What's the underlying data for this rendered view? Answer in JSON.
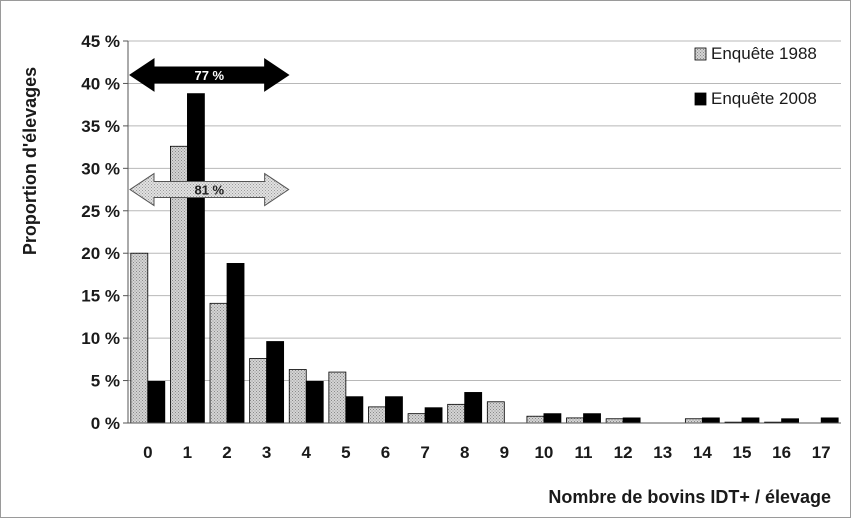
{
  "chart_data": {
    "type": "bar",
    "categories": [
      "0",
      "1",
      "2",
      "3",
      "4",
      "5",
      "6",
      "7",
      "8",
      "9",
      "10",
      "11",
      "12",
      "13",
      "14",
      "15",
      "16",
      "17"
    ],
    "series": [
      {
        "name": "Enquête 1988",
        "color": "#c8c8c8",
        "values": [
          20.0,
          32.6,
          14.1,
          7.6,
          6.3,
          6.0,
          1.9,
          1.1,
          2.2,
          2.5,
          0.8,
          0.6,
          0.5,
          0,
          0.5,
          0.1,
          0.1,
          0
        ]
      },
      {
        "name": "Enquête 2008",
        "color": "#000000",
        "values": [
          4.9,
          38.8,
          18.8,
          9.6,
          4.9,
          3.1,
          3.1,
          1.8,
          3.6,
          0,
          1.1,
          1.1,
          0.6,
          0,
          0.6,
          0.6,
          0.5,
          0.6
        ]
      }
    ],
    "xlabel": "Nombre de bovins IDT+ / élevage",
    "ylabel": "Proportion d'élevages",
    "ylim": [
      0,
      45
    ],
    "yticks": [
      0,
      5,
      10,
      15,
      20,
      25,
      30,
      35,
      40,
      45
    ],
    "ytick_labels": [
      "0 %",
      "5 %",
      "10 %",
      "15 %",
      "20 %",
      "25 %",
      "30 %",
      "35 %",
      "40 %",
      "45 %"
    ],
    "grid": true,
    "legend_position": "top-right",
    "annotations": [
      {
        "label": "77 %",
        "style": "black-arrow",
        "x_from": 0,
        "x_to": 3,
        "y": 41
      },
      {
        "label": "81 %",
        "style": "dotted-arrow",
        "x_from": 0,
        "x_to": 3,
        "y": 27.5
      }
    ]
  }
}
